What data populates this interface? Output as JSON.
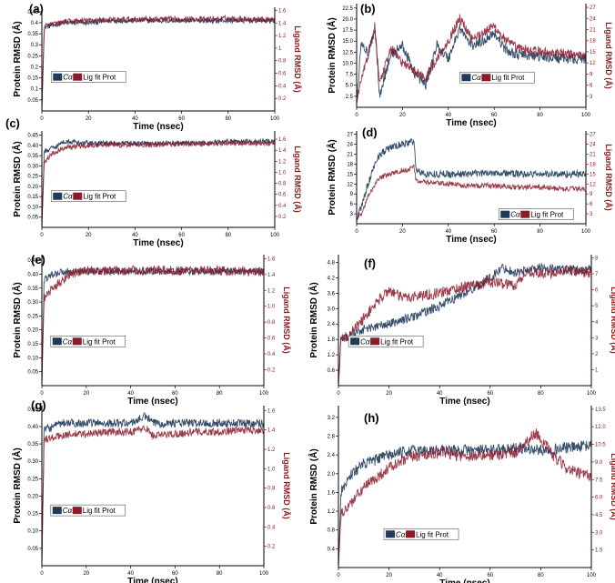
{
  "figure": {
    "background": "#ffffff"
  },
  "colors": {
    "ca": "#1f3b5a",
    "lig": "#8b1a2b",
    "right_axis": "#8b1a1a"
  },
  "chart_data": [
    {
      "label": "(a)",
      "type": "line",
      "xlabel": "Time (nsec)",
      "ylabel": "Protein RMSD (Å)",
      "y2label": "Ligand RMSD (Å)",
      "xlim": [
        0,
        100
      ],
      "ylim": [
        0,
        0.47
      ],
      "y2lim": [
        0,
        1.65
      ],
      "xticks": [
        0,
        20,
        40,
        60,
        80,
        100
      ],
      "yticks": [
        0.05,
        0.1,
        0.15,
        0.2,
        0.25,
        0.3,
        0.35,
        0.4,
        0.45
      ],
      "ytick_labels": [
        "0.05",
        "0.1",
        "0.15",
        "0.2",
        "0.25",
        "0.3",
        "0.35",
        "0.4",
        "0.45"
      ],
      "y2ticks": [
        0.2,
        0.4,
        0.6,
        0.8,
        1.0,
        1.2,
        1.4,
        1.6
      ],
      "y2tick_labels": [
        "0.2",
        "0.4",
        "0.6",
        "0.8",
        "1",
        "1.2",
        "1.4",
        "1.6"
      ],
      "legend": [
        "Cα",
        "Lig fit Prot"
      ],
      "legend_pos": "center-left",
      "series": [
        {
          "name": "Cα",
          "axis": "left",
          "x": [
            0,
            1,
            5,
            10,
            20,
            30,
            40,
            50,
            60,
            70,
            80,
            90,
            100
          ],
          "y": [
            0,
            0.38,
            0.39,
            0.4,
            0.4,
            0.41,
            0.41,
            0.41,
            0.41,
            0.41,
            0.41,
            0.41,
            0.41
          ],
          "noise": 0.012
        },
        {
          "name": "Lig fit Prot",
          "axis": "right",
          "x": [
            0,
            1,
            5,
            10,
            20,
            30,
            40,
            50,
            60,
            70,
            80,
            90,
            100
          ],
          "y": [
            0,
            1.35,
            1.38,
            1.42,
            1.44,
            1.45,
            1.46,
            1.46,
            1.46,
            1.46,
            1.47,
            1.46,
            1.46
          ],
          "noise": 0.045
        }
      ]
    },
    {
      "label": "(b)",
      "type": "line",
      "xlabel": "Time (nsec)",
      "ylabel": "Protein RMSD (Å)",
      "y2label": "Ligand RMSD (Å)",
      "xlim": [
        0,
        100
      ],
      "ylim": [
        0,
        23.5
      ],
      "y2lim": [
        0,
        28
      ],
      "xticks": [
        0,
        20,
        40,
        60,
        80,
        100
      ],
      "yticks": [
        2.5,
        5.0,
        7.5,
        10.0,
        12.5,
        15.0,
        17.5,
        20.0,
        22.5
      ],
      "ytick_labels": [
        "2.5",
        "5.0",
        "7.5",
        "10.0",
        "12.5",
        "15.0",
        "17.5",
        "20.0",
        "22.5"
      ],
      "y2ticks": [
        3,
        6,
        9,
        12,
        15,
        18,
        21,
        24,
        27
      ],
      "y2tick_labels": [
        "3",
        "6",
        "9",
        "12",
        "15",
        "18",
        "21",
        "24",
        "27"
      ],
      "legend": [
        "Cα",
        "Lig fit Prot"
      ],
      "legend_pos": "center",
      "series": [
        {
          "name": "Cα",
          "axis": "left",
          "x": [
            0,
            2,
            5,
            8,
            10,
            15,
            20,
            25,
            30,
            35,
            40,
            45,
            50,
            55,
            60,
            65,
            70,
            80,
            90,
            100
          ],
          "y": [
            1,
            15,
            12,
            18,
            3,
            12,
            14,
            8,
            5,
            14,
            11,
            18,
            14,
            15,
            17,
            13,
            12,
            11.5,
            11,
            11
          ],
          "noise": 1.2
        },
        {
          "name": "Lig fit Prot",
          "axis": "right",
          "x": [
            0,
            2,
            5,
            8,
            10,
            15,
            20,
            25,
            30,
            35,
            40,
            45,
            50,
            55,
            60,
            65,
            70,
            80,
            90,
            100
          ],
          "y": [
            1,
            8,
            14,
            22,
            6,
            16,
            12,
            10,
            8,
            13,
            18,
            24,
            19,
            20,
            22,
            18,
            16,
            15,
            14.5,
            14
          ],
          "noise": 1.3
        }
      ]
    },
    {
      "label": "(c)",
      "type": "line",
      "xlabel": "Time (nsec)",
      "ylabel": "Protein RMSD (Å)",
      "y2label": "Ligand RMSD (Å)",
      "xlim": [
        0,
        100
      ],
      "ylim": [
        0,
        0.47
      ],
      "y2lim": [
        0,
        1.75
      ],
      "xticks": [
        0,
        20,
        40,
        60,
        80,
        100
      ],
      "yticks": [
        0.05,
        0.1,
        0.15,
        0.2,
        0.25,
        0.3,
        0.35,
        0.4,
        0.45
      ],
      "ytick_labels": [
        "0.05",
        "0.10",
        "0.15",
        "0.20",
        "0.25",
        "0.30",
        "0.35",
        "0.40",
        "0.45"
      ],
      "y2ticks": [
        0.2,
        0.4,
        0.6,
        0.8,
        1.0,
        1.2,
        1.4,
        1.6
      ],
      "y2tick_labels": [
        "0.2",
        "0.4",
        "0.6",
        "0.8",
        "1.0",
        "1.2",
        "1.4",
        "1.6"
      ],
      "legend": [
        "Cα",
        "Lig fit Prot"
      ],
      "legend_pos": "center-left",
      "series": [
        {
          "name": "Cα",
          "axis": "left",
          "x": [
            0,
            1,
            5,
            10,
            20,
            30,
            40,
            50,
            60,
            70,
            80,
            90,
            100
          ],
          "y": [
            0,
            0.37,
            0.39,
            0.42,
            0.41,
            0.41,
            0.41,
            0.41,
            0.41,
            0.41,
            0.42,
            0.42,
            0.42
          ],
          "noise": 0.012
        },
        {
          "name": "Lig fit Prot",
          "axis": "right",
          "x": [
            0,
            1,
            5,
            10,
            20,
            30,
            40,
            50,
            60,
            70,
            80,
            90,
            100
          ],
          "y": [
            0,
            1.2,
            1.35,
            1.45,
            1.5,
            1.5,
            1.5,
            1.5,
            1.52,
            1.52,
            1.53,
            1.53,
            1.53
          ],
          "noise": 0.05
        }
      ]
    },
    {
      "label": "(d)",
      "type": "line",
      "xlabel": "Time (nsec)",
      "ylabel": "Protein RMSD (Å)",
      "y2label": "Ligand RMSD (Å)",
      "xlim": [
        0,
        100
      ],
      "ylim": [
        0,
        28
      ],
      "y2lim": [
        0,
        28
      ],
      "xticks": [
        0,
        20,
        40,
        60,
        80,
        100
      ],
      "yticks": [
        3,
        6,
        9,
        12,
        15,
        18,
        21,
        24,
        27
      ],
      "ytick_labels": [
        "3",
        "6",
        "9",
        "12",
        "15",
        "18",
        "21",
        "24",
        "27"
      ],
      "y2ticks": [
        3,
        6,
        9,
        12,
        15,
        18,
        21,
        24,
        27
      ],
      "y2tick_labels": [
        "3",
        "6",
        "9",
        "12",
        "15",
        "18",
        "21",
        "24",
        "27"
      ],
      "legend": [
        "Cα",
        "Lig fit Prot"
      ],
      "legend_pos": "bottom-right",
      "series": [
        {
          "name": "Cα",
          "axis": "left",
          "x": [
            0,
            2,
            5,
            8,
            10,
            15,
            20,
            25,
            26,
            30,
            40,
            50,
            60,
            70,
            80,
            90,
            100
          ],
          "y": [
            1,
            5,
            12,
            18,
            21,
            23,
            24,
            25,
            16,
            15,
            15,
            15,
            15.5,
            15,
            15,
            15,
            15
          ],
          "noise": 1.1
        },
        {
          "name": "Lig fit Prot",
          "axis": "right",
          "x": [
            0,
            2,
            5,
            8,
            10,
            15,
            20,
            25,
            26,
            30,
            40,
            50,
            60,
            70,
            80,
            90,
            100
          ],
          "y": [
            1,
            3,
            8,
            12,
            14,
            15,
            16,
            17,
            13,
            12.5,
            12,
            11.5,
            11.5,
            11,
            11,
            10.5,
            10.5
          ],
          "noise": 0.8
        }
      ]
    },
    {
      "label": "(e)",
      "type": "line",
      "xlabel": "Time (nsec)",
      "ylabel": "Protein RMSD (Å)",
      "y2label": "Ligand RMSD (Å)",
      "xlim": [
        0,
        100
      ],
      "ylim": [
        0,
        0.47
      ],
      "y2lim": [
        0,
        1.65
      ],
      "xticks": [
        0,
        20,
        40,
        60,
        80,
        100
      ],
      "yticks": [
        0.05,
        0.1,
        0.15,
        0.2,
        0.25,
        0.3,
        0.35,
        0.4,
        0.45
      ],
      "ytick_labels": [
        "0.05",
        "0.10",
        "0.15",
        "0.20",
        "0.25",
        "0.30",
        "0.35",
        "0.40",
        "0.45"
      ],
      "y2ticks": [
        0.2,
        0.4,
        0.6,
        0.8,
        1.0,
        1.2,
        1.4,
        1.6
      ],
      "y2tick_labels": [
        "0.2",
        "0.4",
        "0.6",
        "0.8",
        "1.0",
        "1.2",
        "1.4",
        "1.6"
      ],
      "legend": [
        "Cα",
        "Lig fit Prot"
      ],
      "legend_pos": "center-left",
      "series": [
        {
          "name": "Cα",
          "axis": "left",
          "x": [
            0,
            1,
            5,
            10,
            20,
            30,
            40,
            50,
            60,
            70,
            80,
            90,
            100
          ],
          "y": [
            0,
            0.38,
            0.4,
            0.41,
            0.41,
            0.41,
            0.41,
            0.41,
            0.41,
            0.41,
            0.41,
            0.41,
            0.41
          ],
          "noise": 0.013
        },
        {
          "name": "Lig fit Prot",
          "axis": "right",
          "x": [
            0,
            1,
            4,
            8,
            12,
            20,
            30,
            40,
            50,
            60,
            70,
            80,
            90,
            100
          ],
          "y": [
            0,
            1.1,
            1.2,
            1.3,
            1.4,
            1.45,
            1.45,
            1.45,
            1.45,
            1.45,
            1.45,
            1.45,
            1.44,
            1.44
          ],
          "noise": 0.06
        }
      ]
    },
    {
      "label": "(f)",
      "type": "line",
      "xlabel": "Time (nsec)",
      "ylabel": "Protein RMSD (Å)",
      "y2label": "Ligand RMSD (Å)",
      "xlim": [
        0,
        100
      ],
      "ylim": [
        0,
        5.1
      ],
      "y2lim": [
        0,
        8.2
      ],
      "xticks": [
        0,
        20,
        40,
        60,
        80,
        100
      ],
      "yticks": [
        0.6,
        1.2,
        1.8,
        2.4,
        3.0,
        3.6,
        4.2,
        4.8
      ],
      "ytick_labels": [
        "0.6",
        "1.2",
        "1.8",
        "2.4",
        "3.0",
        "3.6",
        "4.2",
        "4.8"
      ],
      "y2ticks": [
        1,
        2,
        3,
        4,
        5,
        6,
        7,
        8
      ],
      "y2tick_labels": [
        "1",
        "2",
        "3",
        "4",
        "5",
        "6",
        "7",
        "8"
      ],
      "legend": [
        "Cα",
        "Lig fit Prot"
      ],
      "legend_pos": "center-left",
      "series": [
        {
          "name": "Cα",
          "axis": "left",
          "x": [
            0,
            1,
            5,
            10,
            20,
            30,
            40,
            50,
            60,
            65,
            70,
            80,
            90,
            100
          ],
          "y": [
            0,
            1.8,
            2.0,
            2.2,
            2.4,
            2.7,
            3.1,
            3.6,
            4.2,
            4.6,
            4.4,
            4.6,
            4.5,
            4.5
          ],
          "noise": 0.18
        },
        {
          "name": "Lig fit Prot",
          "axis": "right",
          "x": [
            0,
            1,
            5,
            10,
            15,
            20,
            25,
            30,
            40,
            50,
            60,
            70,
            75,
            80,
            90,
            100
          ],
          "y": [
            0,
            2.8,
            3.3,
            4.2,
            5.2,
            6.0,
            5.5,
            5.6,
            5.8,
            6.2,
            6.5,
            6.3,
            7.2,
            7.0,
            7.2,
            7.1
          ],
          "noise": 0.35
        }
      ]
    },
    {
      "label": "(g)",
      "type": "line",
      "xlabel": "Time (nsec)",
      "ylabel": "Protein RMSD (Å)",
      "y2label": "Ligand RMSD (Å)",
      "xlim": [
        0,
        100
      ],
      "ylim": [
        0,
        0.46
      ],
      "y2lim": [
        0,
        1.65
      ],
      "xticks": [
        0,
        20,
        40,
        60,
        80,
        100
      ],
      "yticks": [
        0.05,
        0.1,
        0.15,
        0.2,
        0.25,
        0.3,
        0.35,
        0.4,
        0.45
      ],
      "ytick_labels": [
        "0.05",
        "0.10",
        "0.15",
        "0.20",
        "0.25",
        "0.30",
        "0.35",
        "0.40",
        "0.45"
      ],
      "y2ticks": [
        0.2,
        0.4,
        0.6,
        0.8,
        1.0,
        1.2,
        1.4,
        1.6
      ],
      "y2tick_labels": [
        "0.2",
        "0.4",
        "0.6",
        "0.8",
        "1.0",
        "1.2",
        "1.4",
        "1.6"
      ],
      "legend": [
        "Cα",
        "Lig fit Prot"
      ],
      "legend_pos": "center-left",
      "series": [
        {
          "name": "Cα",
          "axis": "left",
          "x": [
            0,
            1,
            5,
            10,
            20,
            30,
            40,
            47,
            50,
            60,
            70,
            80,
            90,
            100
          ],
          "y": [
            0,
            0.39,
            0.4,
            0.41,
            0.41,
            0.41,
            0.41,
            0.43,
            0.41,
            0.41,
            0.41,
            0.41,
            0.41,
            0.41
          ],
          "noise": 0.012
        },
        {
          "name": "Lig fit Prot",
          "axis": "right",
          "x": [
            0,
            1,
            5,
            10,
            20,
            30,
            40,
            47,
            50,
            60,
            70,
            80,
            90,
            100
          ],
          "y": [
            0,
            1.3,
            1.32,
            1.35,
            1.36,
            1.38,
            1.38,
            1.42,
            1.34,
            1.36,
            1.38,
            1.38,
            1.4,
            1.4
          ],
          "noise": 0.04
        }
      ]
    },
    {
      "label": "(h)",
      "type": "line",
      "xlabel": "Time (nsec)",
      "ylabel": "Protein RMSD (Å)",
      "y2label": "Ligand RMSD (Å)",
      "xlim": [
        0,
        100
      ],
      "ylim": [
        0,
        3.45
      ],
      "y2lim": [
        0,
        13.8
      ],
      "xticks": [
        0,
        20,
        40,
        60,
        80,
        100
      ],
      "yticks": [
        0.4,
        0.8,
        1.2,
        1.6,
        2.0,
        2.4,
        2.8,
        3.2
      ],
      "ytick_labels": [
        "0.4",
        "0.8",
        "1.2",
        "1.6",
        "2.0",
        "2.4",
        "2.8",
        "3.2"
      ],
      "y2ticks": [
        1.5,
        3.0,
        4.5,
        6.0,
        7.5,
        9.0,
        10.5,
        12.0,
        13.5
      ],
      "y2tick_labels": [
        "1.5",
        "3.0",
        "4.5",
        "6.0",
        "7.5",
        "9.0",
        "10.5",
        "12.0",
        "13.5"
      ],
      "legend": [
        "Cα",
        "Lig fit Prot"
      ],
      "legend_pos": "bottom-center",
      "series": [
        {
          "name": "Cα",
          "axis": "left",
          "x": [
            0,
            1,
            5,
            10,
            20,
            30,
            40,
            50,
            60,
            70,
            80,
            90,
            100
          ],
          "y": [
            0,
            1.6,
            2.0,
            2.2,
            2.4,
            2.5,
            2.5,
            2.5,
            2.5,
            2.55,
            2.5,
            2.55,
            2.6
          ],
          "noise": 0.12
        },
        {
          "name": "Lig fit Prot",
          "axis": "right",
          "x": [
            0,
            1,
            5,
            10,
            20,
            30,
            40,
            50,
            60,
            70,
            78,
            85,
            90,
            95,
            100
          ],
          "y": [
            0,
            4.5,
            5.5,
            6.8,
            8.5,
            9.5,
            9.8,
            9.5,
            9.6,
            9.8,
            11.5,
            9.5,
            8.5,
            8.0,
            7.8
          ],
          "noise": 0.5
        }
      ]
    }
  ]
}
